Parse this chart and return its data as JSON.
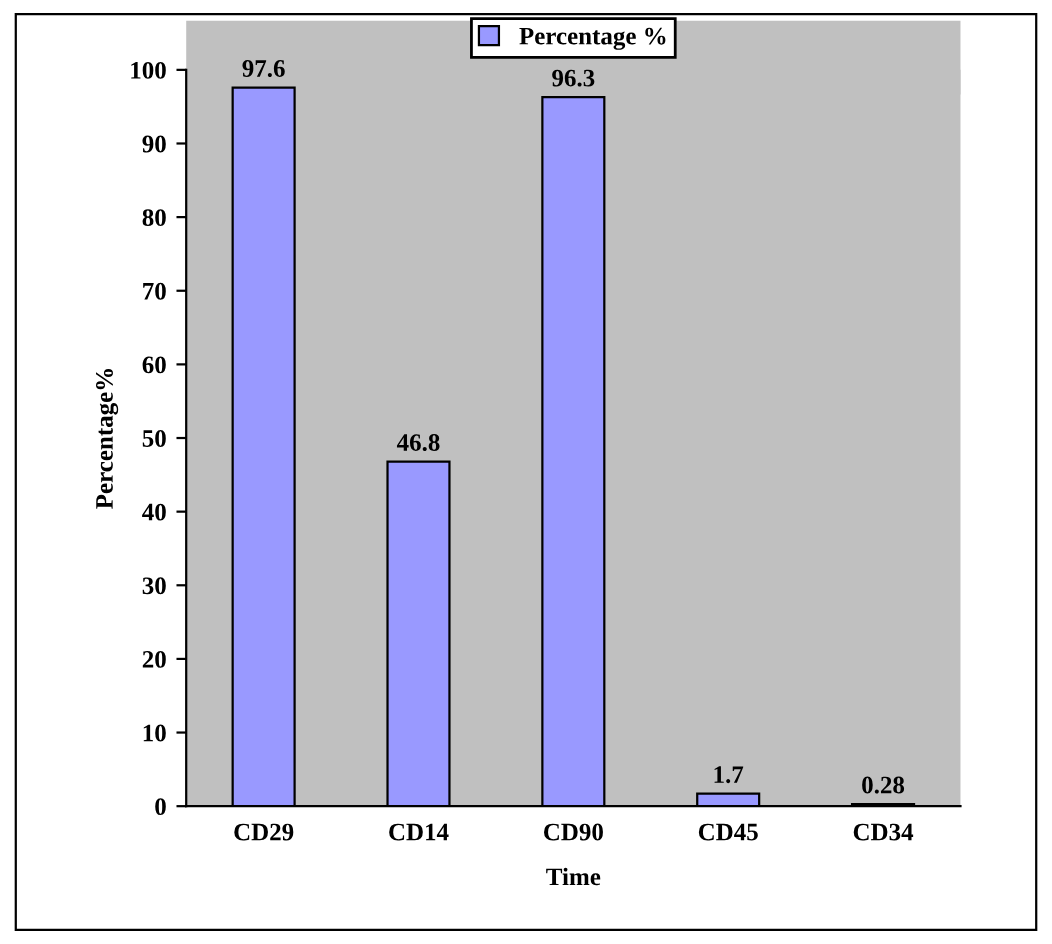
{
  "chart_data": {
    "type": "bar",
    "categories": [
      "CD29",
      "CD14",
      "CD90",
      "CD45",
      "CD34"
    ],
    "series": [
      {
        "name": "Percentage %",
        "color": "#9999ff",
        "values": [
          97.6,
          46.8,
          96.3,
          1.7,
          0.28
        ]
      }
    ],
    "xlabel": "Time",
    "ylabel": "Percentage%",
    "ylim": [
      0,
      100
    ],
    "yticks": [
      0,
      10,
      20,
      30,
      40,
      50,
      60,
      70,
      80,
      90,
      100
    ],
    "data_labels": true,
    "grid": false,
    "legend": "top"
  }
}
